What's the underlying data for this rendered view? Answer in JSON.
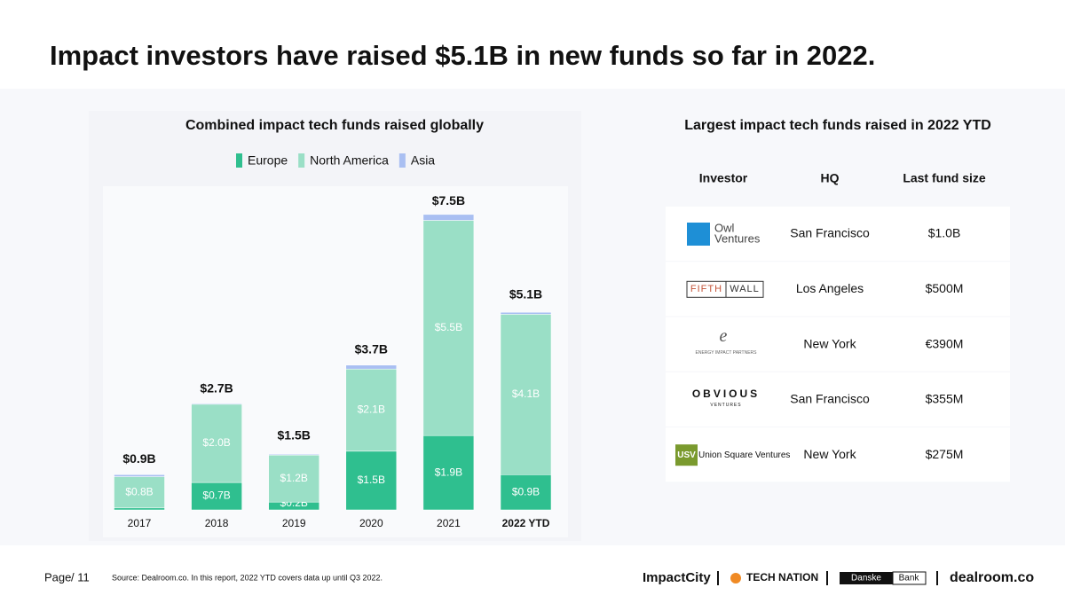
{
  "title": "Impact investors have raised $5.1B in new funds so far in 2022.",
  "chart_data": {
    "type": "stacked-bar",
    "title": "Combined impact tech funds raised globally",
    "categories": [
      "2017",
      "2018",
      "2019",
      "2020",
      "2021",
      "2022 YTD"
    ],
    "series": [
      {
        "name": "Europe",
        "color": "#2fbf8f",
        "values": [
          0.05,
          0.7,
          0.2,
          1.5,
          1.9,
          0.9
        ],
        "value_labels": [
          null,
          "$0.7B",
          "$0.2B",
          "$1.5B",
          "$1.9B",
          "$0.9B"
        ]
      },
      {
        "name": "North America",
        "color": "#9adfc6",
        "values": [
          0.8,
          2.0,
          1.2,
          2.1,
          5.5,
          4.1
        ],
        "value_labels": [
          "$0.8B",
          "$2.0B",
          "$1.2B",
          "$2.1B",
          "$5.5B",
          "$4.1B"
        ]
      },
      {
        "name": "Asia",
        "color": "#a9bff2",
        "values": [
          0.05,
          0.02,
          0.02,
          0.1,
          0.15,
          0.05
        ]
      }
    ],
    "totals": {
      "values": [
        0.9,
        2.7,
        1.5,
        3.7,
        7.5,
        5.1
      ],
      "value_labels": [
        "$0.9B",
        "$2.7B",
        "$1.5B",
        "$3.7B",
        "$7.5B",
        "$5.1B"
      ]
    },
    "ylim": [
      0,
      8
    ]
  },
  "table": {
    "title": "Largest impact tech funds raised in 2022 YTD",
    "columns": [
      "Investor",
      "HQ",
      "Last fund size"
    ],
    "rows": [
      {
        "investor": [
          "Owl",
          "Ventures"
        ],
        "hq": "San Francisco",
        "size": "$1.0B"
      },
      {
        "investor": [
          "FIFTH",
          "WALL"
        ],
        "hq": "Los Angeles",
        "size": "$500M"
      },
      {
        "investor": [
          "e",
          "ENERGY IMPACT PARTNERS"
        ],
        "hq": "New York",
        "size": "€390M"
      },
      {
        "investor": [
          "OBVIOUS",
          "VENTURES"
        ],
        "hq": "San Francisco",
        "size": "$355M"
      },
      {
        "investor": [
          "USV",
          "Union Square Ventures"
        ],
        "hq": "New York",
        "size": "$275M"
      }
    ]
  },
  "footer": {
    "page": "Page",
    "page_number": "/ 11",
    "source": "Source: Dealroom.co. In this report, 2022 YTD covers data up until Q3 2022.",
    "logos": [
      "ImpactCity",
      "TECH NATION",
      "Danske",
      "Bank",
      "dealroom.co"
    ]
  }
}
